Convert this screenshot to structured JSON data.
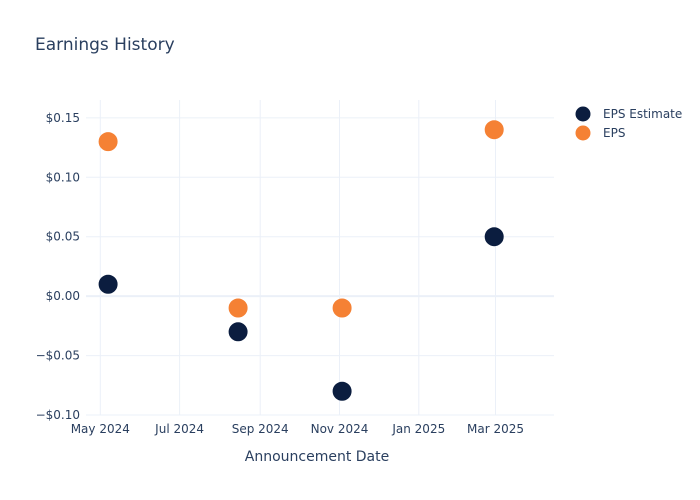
{
  "chart_data": {
    "type": "scatter",
    "title": "Earnings History",
    "xlabel": "Announcement Date",
    "ylabel": "",
    "x_axis": {
      "type": "date",
      "range": [
        "2024-04-20",
        "2025-04-15"
      ],
      "ticks": [
        {
          "date": "2024-05-01",
          "label": "May 2024"
        },
        {
          "date": "2024-07-01",
          "label": "Jul 2024"
        },
        {
          "date": "2024-09-01",
          "label": "Sep 2024"
        },
        {
          "date": "2024-11-01",
          "label": "Nov 2024"
        },
        {
          "date": "2025-01-01",
          "label": "Jan 2025"
        },
        {
          "date": "2025-03-01",
          "label": "Mar 2025"
        }
      ]
    },
    "y_axis": {
      "range": [
        -0.1,
        0.165
      ],
      "ticks": [
        {
          "value": 0.15,
          "label": "$0.15"
        },
        {
          "value": 0.1,
          "label": "$0.10"
        },
        {
          "value": 0.05,
          "label": "$0.05"
        },
        {
          "value": 0.0,
          "label": "$0.00"
        },
        {
          "value": -0.05,
          "label": "−$0.05"
        },
        {
          "value": -0.1,
          "label": "−$0.10"
        }
      ]
    },
    "grid": true,
    "legend_position": "top-right",
    "series": [
      {
        "name": "EPS Estimate",
        "color": "#0b1d3f",
        "points": [
          {
            "x": "2024-05-07",
            "y": 0.01
          },
          {
            "x": "2024-08-15",
            "y": -0.03
          },
          {
            "x": "2024-11-03",
            "y": -0.08
          },
          {
            "x": "2025-02-28",
            "y": 0.05
          }
        ]
      },
      {
        "name": "EPS",
        "color": "#f58134",
        "points": [
          {
            "x": "2024-05-07",
            "y": 0.13
          },
          {
            "x": "2024-08-15",
            "y": -0.01
          },
          {
            "x": "2024-11-03",
            "y": -0.01
          },
          {
            "x": "2025-02-28",
            "y": 0.14
          }
        ]
      }
    ]
  }
}
